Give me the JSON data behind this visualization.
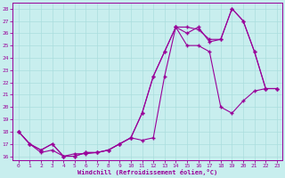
{
  "xlabel": "Windchill (Refroidissement éolien,°C)",
  "xlim": [
    -0.5,
    23.5
  ],
  "ylim": [
    15.7,
    28.5
  ],
  "xticks": [
    0,
    1,
    2,
    3,
    4,
    5,
    6,
    7,
    8,
    9,
    10,
    11,
    12,
    13,
    14,
    15,
    16,
    17,
    18,
    19,
    20,
    21,
    22,
    23
  ],
  "yticks": [
    16,
    17,
    18,
    19,
    20,
    21,
    22,
    23,
    24,
    25,
    26,
    27,
    28
  ],
  "bg_color": "#c8eeee",
  "line_color": "#990099",
  "grid_color": "#aadddd",
  "line1_x": [
    0,
    1,
    2,
    3,
    4,
    5,
    6,
    7,
    8,
    9,
    10,
    11,
    12,
    13,
    14,
    15,
    16,
    17,
    18,
    19,
    20,
    21,
    22,
    23
  ],
  "line1_y": [
    18,
    17,
    16.5,
    17,
    16,
    16,
    16.3,
    16.3,
    16.5,
    17,
    17.5,
    19.5,
    22.5,
    24.5,
    26.5,
    26.5,
    26.3,
    25.5,
    25.5,
    28,
    27,
    24.5,
    21.5,
    21.5
  ],
  "line2_x": [
    0,
    1,
    2,
    3,
    4,
    5,
    6,
    7,
    8,
    9,
    10,
    11,
    12,
    13,
    14,
    15,
    16,
    17,
    18,
    19,
    20,
    21,
    22,
    23
  ],
  "line2_y": [
    18,
    17,
    16.3,
    16.5,
    16,
    16.2,
    16.2,
    16.3,
    16.5,
    17,
    17.5,
    17.3,
    17.5,
    22.5,
    26.5,
    26,
    26.5,
    25.3,
    25.5,
    28,
    27,
    24.5,
    21.5,
    21.5
  ],
  "line3_x": [
    0,
    1,
    2,
    3,
    4,
    5,
    6,
    7,
    8,
    9,
    10,
    11,
    12,
    13,
    14,
    15,
    16,
    17,
    18,
    19,
    20,
    21,
    22,
    23
  ],
  "line3_y": [
    18,
    17,
    16.5,
    17,
    16,
    16,
    16.3,
    16.3,
    16.5,
    17,
    17.5,
    19.5,
    22.5,
    24.5,
    26.5,
    25,
    25,
    24.5,
    20,
    19.5,
    20.5,
    21.3,
    21.5,
    21.5
  ]
}
